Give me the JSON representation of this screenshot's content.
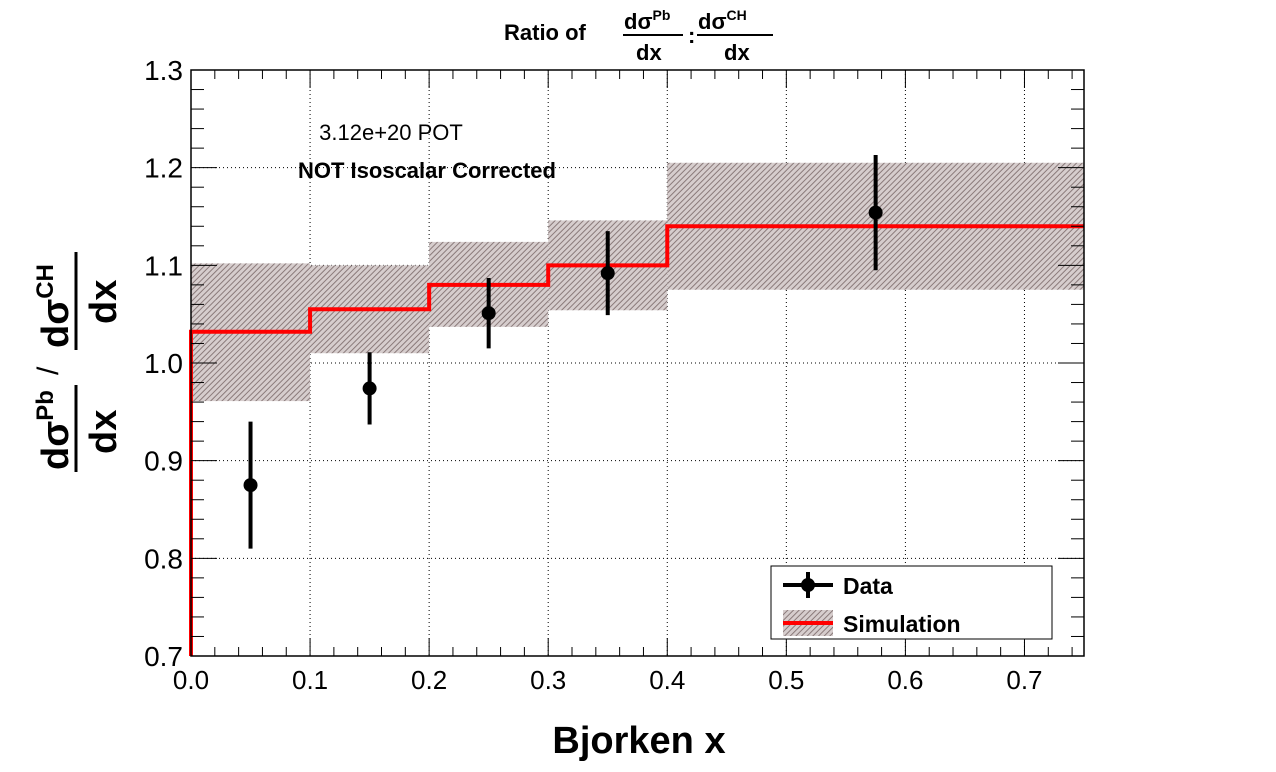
{
  "chart_data": {
    "type": "line",
    "title": {
      "prefix": "Ratio of",
      "frac1_num_base": "dσ",
      "frac1_num_sup": "Pb",
      "frac1_den": "dx",
      "separator": ":",
      "frac2_num_base": "dσ",
      "frac2_num_sup": "CH",
      "frac2_den": "dx"
    },
    "xlabel": "Bjorken x",
    "ylabel": {
      "num_base": "dσ",
      "num_sup": "Pb",
      "den": "dx",
      "separator": "/",
      "num2_base": "dσ",
      "num2_sup": "CH",
      "den2": "dx"
    },
    "xlim": [
      0.0,
      0.75
    ],
    "ylim": [
      0.7,
      1.3
    ],
    "grid": true,
    "x_ticks": [
      0.0,
      0.1,
      0.2,
      0.3,
      0.4,
      0.5,
      0.6,
      0.7
    ],
    "x_tick_labels": [
      "0.0",
      "0.1",
      "0.2",
      "0.3",
      "0.4",
      "0.5",
      "0.6",
      "0.7"
    ],
    "y_ticks": [
      0.7,
      0.8,
      0.9,
      1.0,
      1.1,
      1.2,
      1.3
    ],
    "y_tick_labels": [
      "0.7",
      "0.8",
      "0.9",
      "1.0",
      "1.1",
      "1.2",
      "1.3"
    ],
    "annotations": [
      "3.12e+20 POT",
      "NOT Isoscalar Corrected"
    ],
    "legend": {
      "position": "bottom-right",
      "entries": [
        "Data",
        "Simulation"
      ]
    },
    "series": [
      {
        "name": "Data",
        "kind": "points-with-errors",
        "color": "#000000",
        "x": [
          0.05,
          0.15,
          0.25,
          0.35,
          0.575
        ],
        "y": [
          0.875,
          0.974,
          1.051,
          1.092,
          1.154
        ],
        "yerr": [
          0.065,
          0.037,
          0.036,
          0.043,
          0.059
        ]
      },
      {
        "name": "Simulation",
        "kind": "step-with-band",
        "color": "#ff0000",
        "band_color": "#a89a9a",
        "bin_edges": [
          0.0,
          0.1,
          0.2,
          0.3,
          0.4,
          0.75
        ],
        "values": [
          1.032,
          1.055,
          1.08,
          1.1,
          1.14
        ],
        "band_low": [
          0.961,
          1.01,
          1.037,
          1.054,
          1.075
        ],
        "band_high": [
          1.102,
          1.1,
          1.124,
          1.146,
          1.205
        ]
      }
    ]
  }
}
